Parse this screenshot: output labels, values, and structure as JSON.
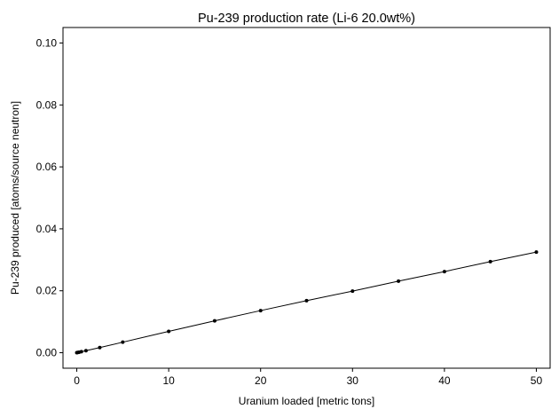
{
  "chart_data": {
    "type": "line",
    "title": "Pu-239 production rate (Li-6 20.0wt%)",
    "xlabel": "Uranium loaded [metric tons]",
    "ylabel": "Pu-239 produced [atoms/source neutron]",
    "xlim": [
      -1.5,
      51.5
    ],
    "ylim": [
      -0.005,
      0.105
    ],
    "xticks": [
      0,
      10,
      20,
      30,
      40,
      50
    ],
    "yticks": [
      0.0,
      0.02,
      0.04,
      0.06,
      0.08,
      0.1
    ],
    "xtick_labels": [
      "0",
      "10",
      "20",
      "30",
      "40",
      "50"
    ],
    "ytick_labels": [
      "0.00",
      "0.02",
      "0.04",
      "0.06",
      "0.08",
      "0.10"
    ],
    "grid": false,
    "legend": false,
    "series": [
      {
        "color": "#000000",
        "marker": "circle",
        "x": [
          0,
          0.1,
          0.25,
          0.5,
          1,
          2.5,
          5,
          10,
          15,
          20,
          25,
          30,
          35,
          40,
          45,
          50
        ],
        "y": [
          0.0,
          7e-05,
          0.00017,
          0.00033,
          0.00066,
          0.00166,
          0.0034,
          0.0069,
          0.0103,
          0.0136,
          0.0168,
          0.0199,
          0.0231,
          0.0262,
          0.0294,
          0.0325
        ]
      }
    ]
  }
}
